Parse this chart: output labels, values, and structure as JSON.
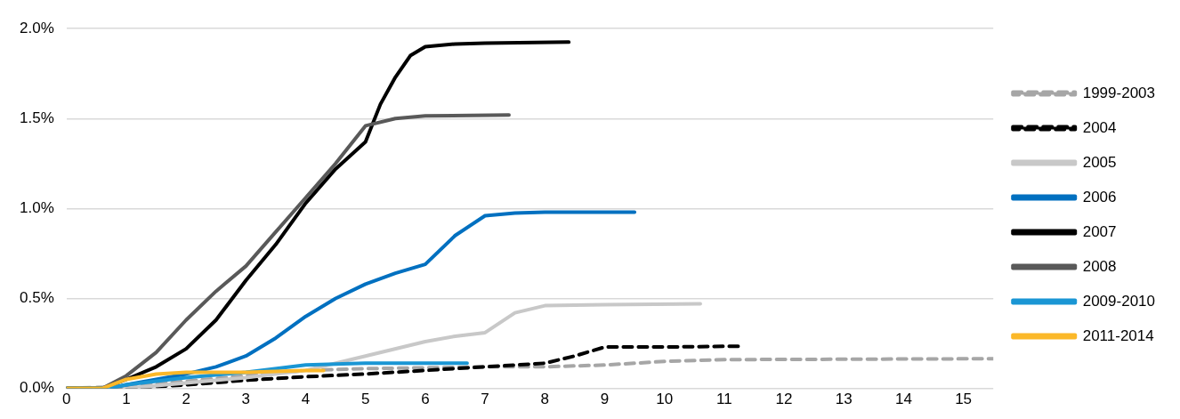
{
  "chart_data": {
    "type": "line",
    "xlim": [
      0,
      15.5
    ],
    "xticks": [
      0,
      1,
      2,
      3,
      4,
      5,
      6,
      7,
      8,
      9,
      10,
      11,
      12,
      13,
      14,
      15
    ],
    "ylim": [
      0,
      2
    ],
    "yticks": [
      {
        "value": 0,
        "label": "0.0%"
      },
      {
        "value": 0.5,
        "label": "0.5%"
      },
      {
        "value": 1,
        "label": "1.0%"
      },
      {
        "value": 1.5,
        "label": "1.5%"
      },
      {
        "value": 2,
        "label": "2.0%"
      }
    ],
    "grid": "y",
    "legend": "right",
    "marker": "none",
    "series": [
      {
        "name": "1999-2003",
        "color": "#a6a6a6",
        "line_style": "dashed",
        "x": [
          0,
          1,
          2,
          3,
          4,
          5,
          6,
          7,
          8,
          9,
          10,
          11,
          15.5
        ],
        "values": [
          0,
          0.01,
          0.04,
          0.07,
          0.1,
          0.11,
          0.115,
          0.12,
          0.12,
          0.13,
          0.15,
          0.16,
          0.165
        ]
      },
      {
        "name": "2004",
        "color": "#000000",
        "line_style": "dashed",
        "x": [
          0,
          1,
          2,
          3,
          4,
          5,
          6,
          7,
          8,
          8.5,
          9,
          10,
          11.3
        ],
        "values": [
          0,
          0,
          0.02,
          0.045,
          0.065,
          0.08,
          0.1,
          0.12,
          0.14,
          0.18,
          0.23,
          0.23,
          0.235
        ]
      },
      {
        "name": "2005",
        "color": "#c8c8c8",
        "line_style": "solid",
        "x": [
          0,
          1,
          2,
          3,
          4,
          5,
          6,
          6.5,
          7,
          7.5,
          8,
          9,
          10.6
        ],
        "values": [
          0,
          0,
          0.03,
          0.06,
          0.1,
          0.18,
          0.26,
          0.29,
          0.31,
          0.42,
          0.46,
          0.465,
          0.47
        ]
      },
      {
        "name": "2006",
        "color": "#0070c0",
        "line_style": "solid",
        "x": [
          0,
          0.7,
          1,
          2,
          2.5,
          3,
          3.5,
          4,
          4.5,
          5,
          5.5,
          6,
          6.5,
          7,
          7.5,
          8,
          9.5
        ],
        "values": [
          0,
          0,
          0.02,
          0.08,
          0.12,
          0.18,
          0.28,
          0.4,
          0.5,
          0.58,
          0.64,
          0.69,
          0.85,
          0.96,
          0.975,
          0.98,
          0.98
        ]
      },
      {
        "name": "2007",
        "color": "#000000",
        "line_style": "solid",
        "x": [
          0,
          0.6,
          1,
          1.5,
          2,
          2.5,
          3,
          3.5,
          4,
          4.5,
          5,
          5.25,
          5.5,
          5.75,
          6,
          6.5,
          7,
          8.4
        ],
        "values": [
          0,
          0,
          0.05,
          0.12,
          0.22,
          0.38,
          0.6,
          0.8,
          1.03,
          1.22,
          1.37,
          1.58,
          1.73,
          1.85,
          1.9,
          1.915,
          1.92,
          1.925
        ]
      },
      {
        "name": "2008",
        "color": "#595959",
        "line_style": "solid",
        "x": [
          0,
          0.6,
          1,
          1.5,
          2,
          2.5,
          3,
          3.5,
          4,
          4.5,
          5,
          5.5,
          6,
          7.4
        ],
        "values": [
          0,
          0,
          0.07,
          0.2,
          0.38,
          0.54,
          0.68,
          0.87,
          1.06,
          1.25,
          1.46,
          1.5,
          1.515,
          1.52
        ]
      },
      {
        "name": "2009-2010",
        "color": "#1a96d4",
        "line_style": "solid",
        "x": [
          0,
          0.7,
          1,
          2,
          3,
          4,
          5,
          6.7
        ],
        "values": [
          0,
          0,
          0.02,
          0.06,
          0.09,
          0.13,
          0.14,
          0.14
        ]
      },
      {
        "name": "2011-2014",
        "color": "#fbb829",
        "line_style": "solid",
        "x": [
          0,
          0.6,
          1,
          1.5,
          2,
          3,
          4,
          4.3
        ],
        "values": [
          0,
          0,
          0.05,
          0.08,
          0.09,
          0.09,
          0.1,
          0.1
        ]
      }
    ]
  }
}
